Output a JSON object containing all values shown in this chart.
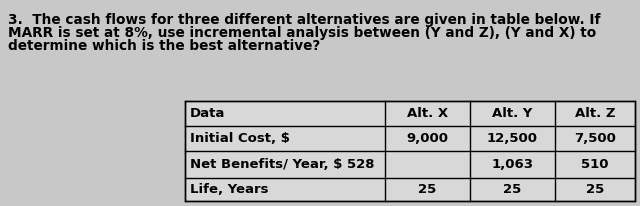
{
  "title_line1": "3.  The cash flows for three different alternatives are given in table below. If",
  "title_line2": "MARR is set at 8%, use incremental analysis between (Y and Z), (Y and X) to",
  "title_line3": "determine which is the best alternative?",
  "table_headers": [
    "Data",
    "Alt. X",
    "Alt. Y",
    "Alt. Z"
  ],
  "table_rows": [
    [
      "Initial Cost, $",
      "9,000",
      "12,500",
      "7,500"
    ],
    [
      "Net Benefits/ Year, $ 528",
      "",
      "1,063",
      "510"
    ],
    [
      "Life, Years",
      "25",
      "25",
      "25"
    ]
  ],
  "bg_color": "#c8c8c8",
  "text_color": "#000000",
  "table_bg": "#d8d8d8",
  "font_size_title": 9.8,
  "font_size_table": 9.5
}
